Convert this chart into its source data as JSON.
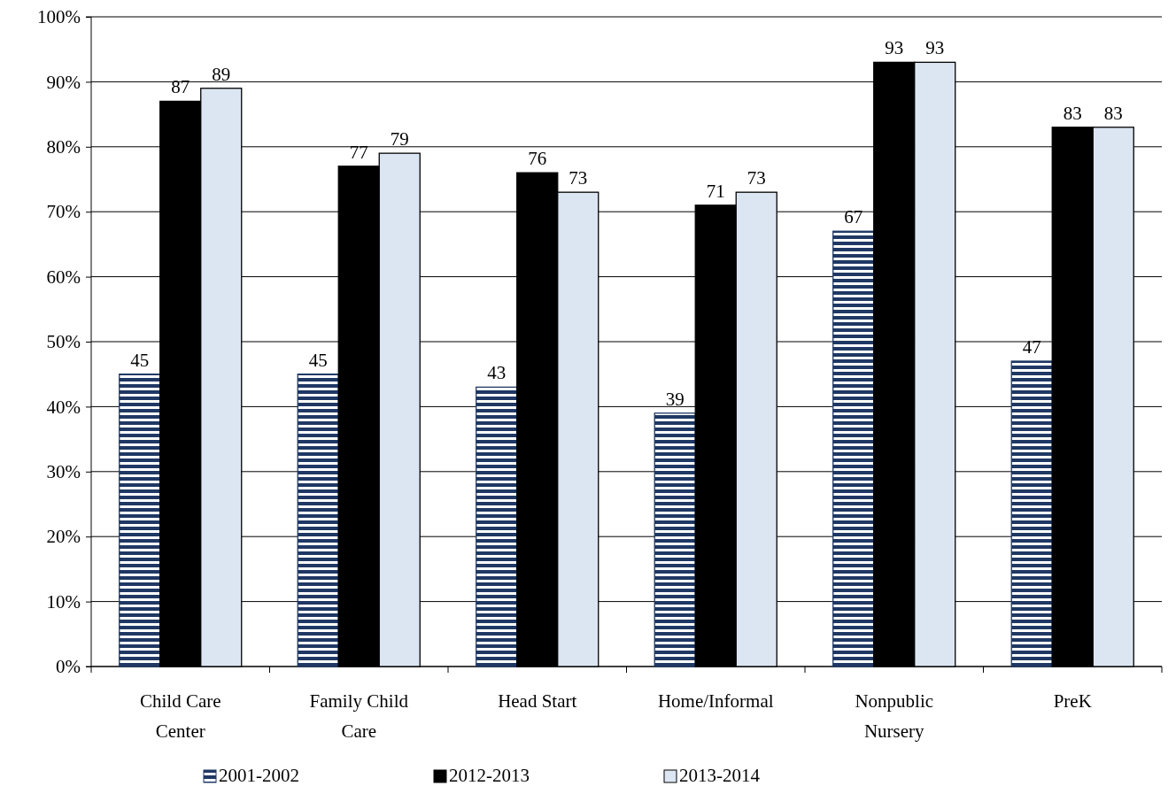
{
  "chart_data": {
    "type": "bar",
    "categories": [
      "Child Care Center",
      "Family Child Care",
      "Head Start",
      "Home/Informal",
      "Nonpublic Nursery",
      "PreK"
    ],
    "series": [
      {
        "name": "2001-2002",
        "color": "#1f3864",
        "values": [
          45,
          45,
          43,
          39,
          67,
          47
        ]
      },
      {
        "name": "2012-2013",
        "color": "#000000",
        "values": [
          87,
          77,
          76,
          71,
          93,
          83
        ]
      },
      {
        "name": "2013-2014",
        "color": "#dce6f2",
        "values": [
          89,
          79,
          73,
          73,
          93,
          83
        ]
      }
    ],
    "ylim": [
      0,
      100
    ],
    "yticks": [
      {
        "value": 0,
        "label": "0%"
      },
      {
        "value": 10,
        "label": "10%"
      },
      {
        "value": 20,
        "label": "20%"
      },
      {
        "value": 30,
        "label": "30%"
      },
      {
        "value": 40,
        "label": "40%"
      },
      {
        "value": 50,
        "label": "50%"
      },
      {
        "value": 60,
        "label": "60%"
      },
      {
        "value": 70,
        "label": "70%"
      },
      {
        "value": 80,
        "label": "80%"
      },
      {
        "value": 90,
        "label": "90%"
      },
      {
        "value": 100,
        "label": "100%"
      }
    ],
    "grid": "y",
    "legend": "bottom",
    "data_labels": true
  }
}
